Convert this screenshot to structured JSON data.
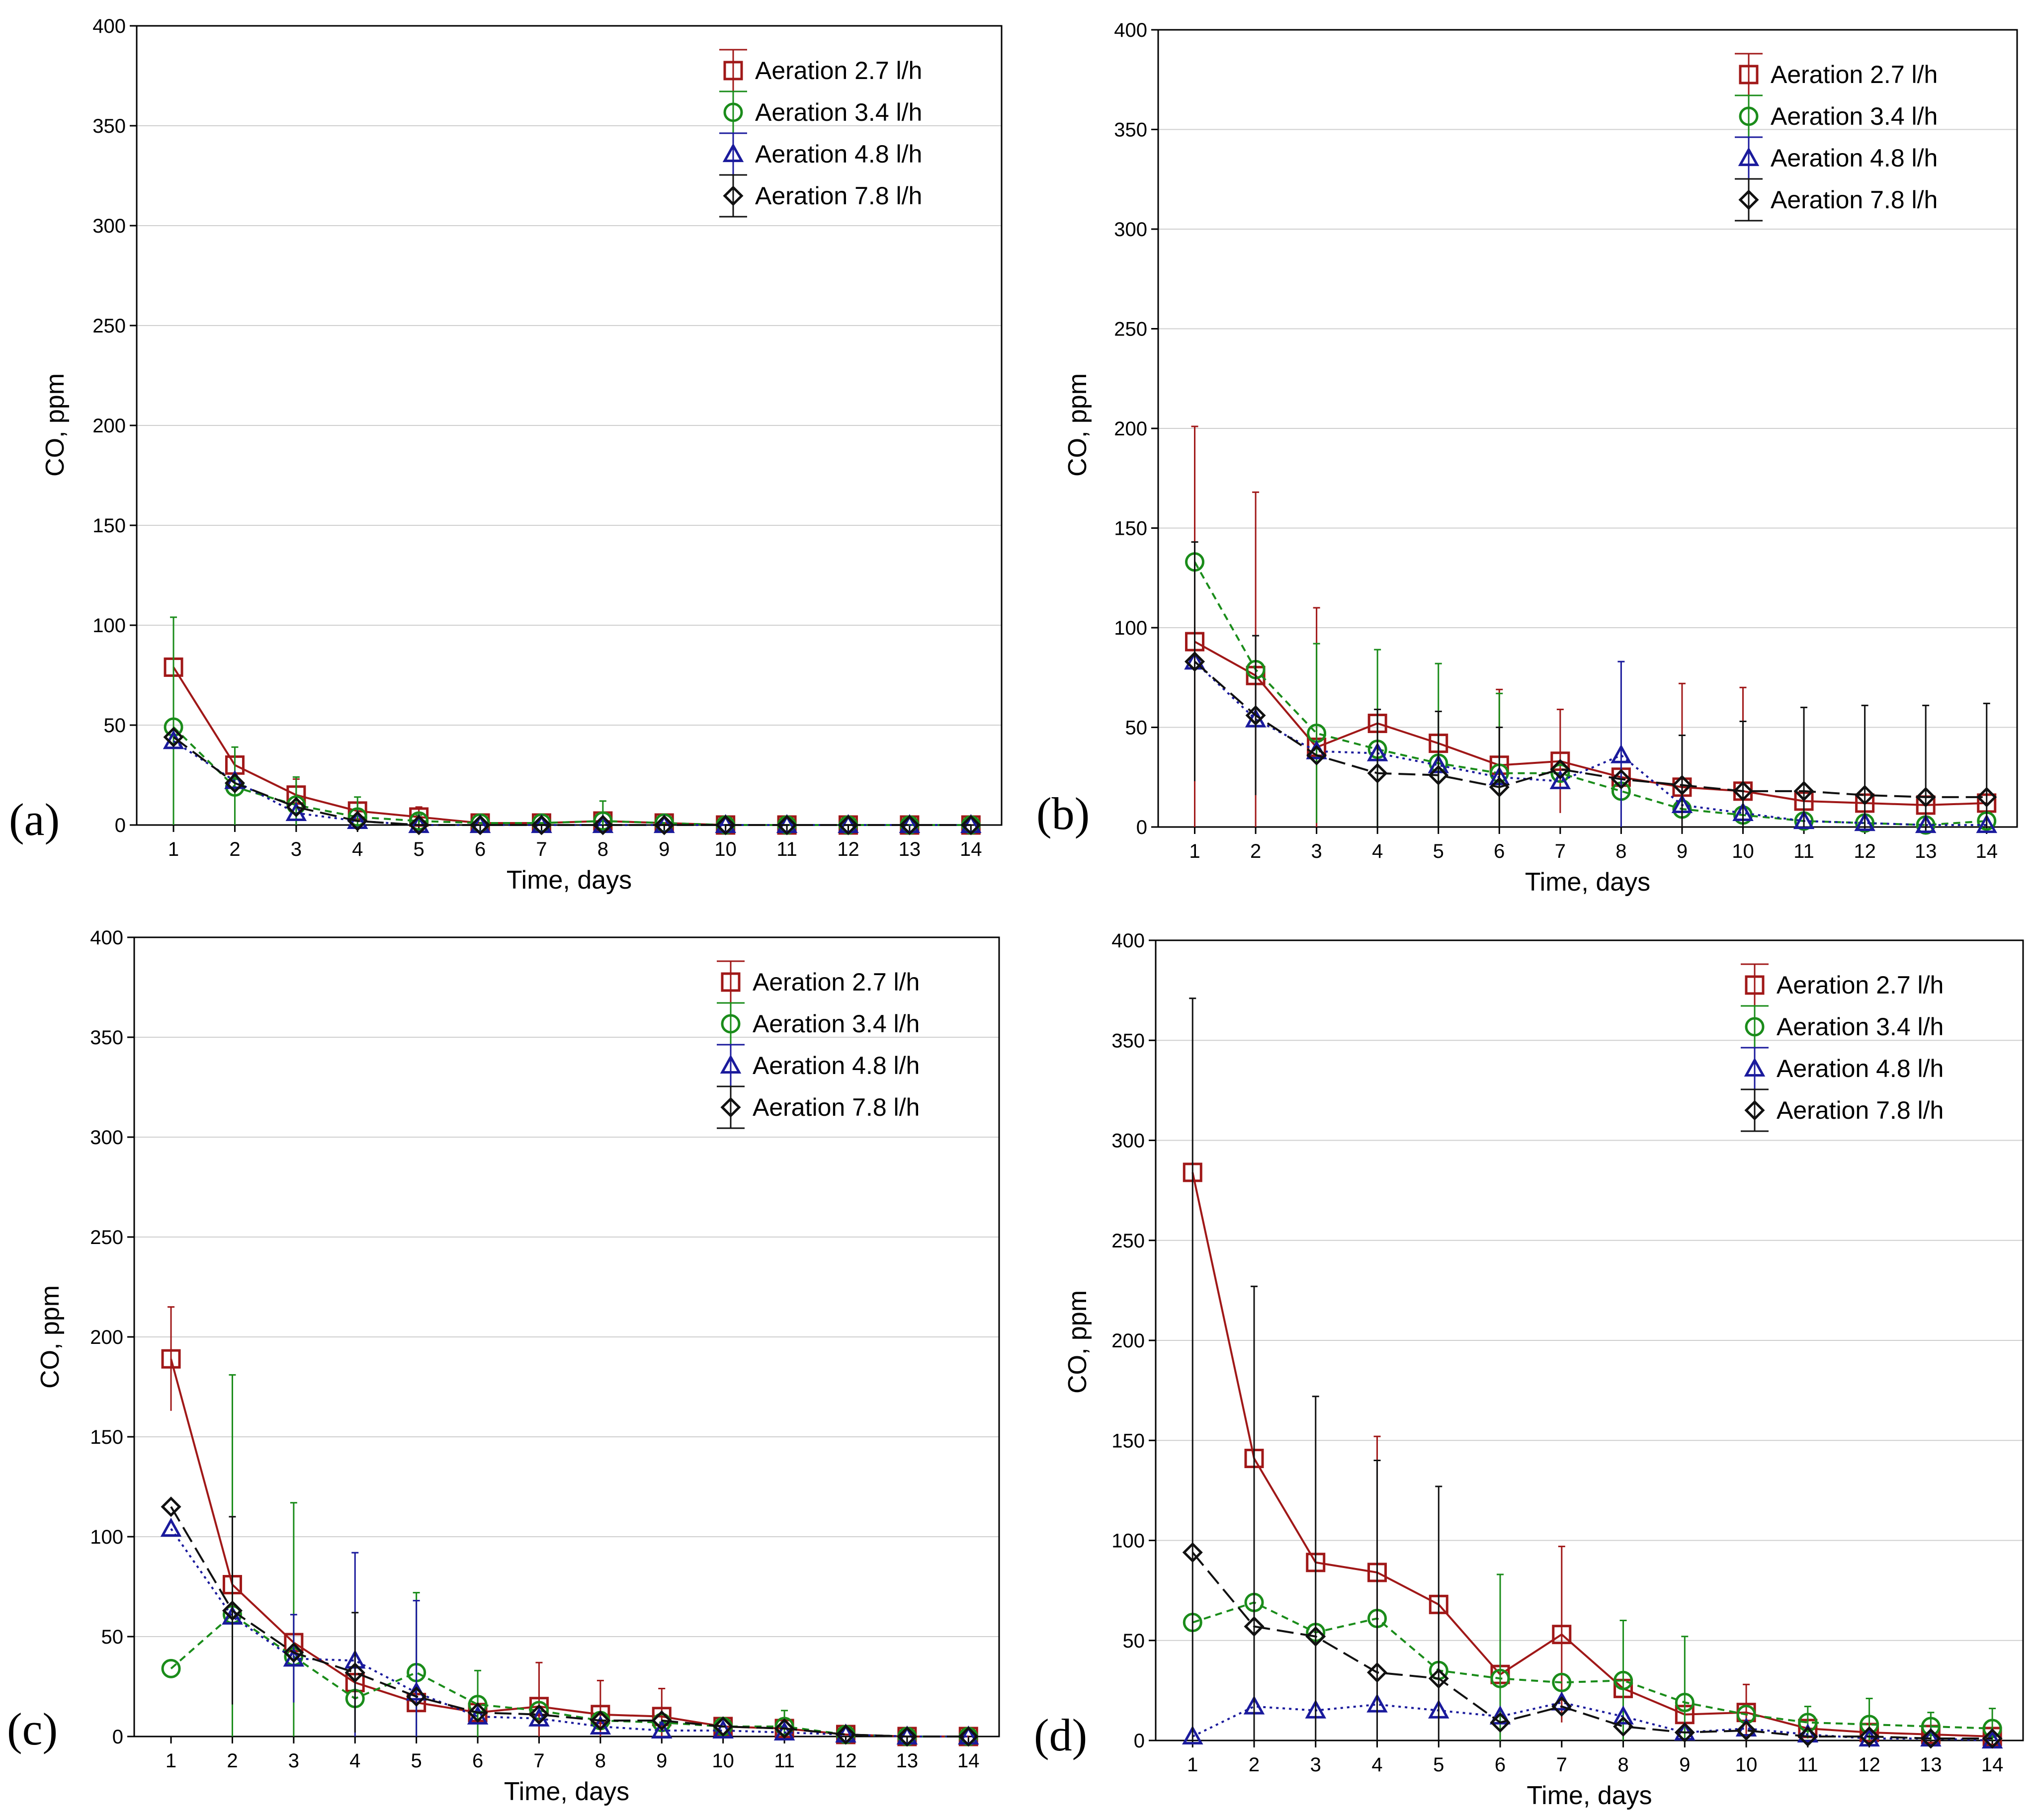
{
  "chart_data": [
    {
      "type": "line",
      "panel_label": "(a)",
      "xlabel": "Time, days",
      "ylabel": "CO, ppm",
      "ylim": [
        0,
        400
      ],
      "yticks": [
        "0",
        "50",
        "100",
        "150",
        "200",
        "250",
        "300",
        "350",
        "400"
      ],
      "categories": [
        "1",
        "2",
        "3",
        "4",
        "5",
        "6",
        "7",
        "8",
        "9",
        "10",
        "11",
        "12",
        "13",
        "14"
      ],
      "grid": "horizontal",
      "legend_position": "top-right",
      "series": [
        {
          "name": "Aeration 2.7 l/h",
          "color": "#a01818",
          "marker": "square",
          "dash": "solid",
          "values": [
            79,
            30,
            15,
            7,
            4,
            1,
            1,
            2,
            1,
            0,
            0,
            0,
            0,
            0
          ],
          "error": [
            0,
            0,
            8,
            4,
            5,
            0,
            0,
            0,
            0,
            0,
            0,
            0,
            0,
            0
          ]
        },
        {
          "name": "Aeration 3.4 l/h",
          "color": "#1a8c1a",
          "marker": "circle",
          "dash": "short",
          "values": [
            49,
            19,
            10,
            4,
            2,
            1,
            1,
            2,
            1,
            0,
            0,
            0,
            0,
            0
          ],
          "error": [
            55,
            20,
            14,
            10,
            3,
            0,
            0,
            10,
            0,
            0,
            0,
            0,
            0,
            0
          ]
        },
        {
          "name": "Aeration 4.8 l/h",
          "color": "#1a1a9c",
          "marker": "triangle",
          "dash": "dot",
          "values": [
            42,
            22,
            6,
            2,
            0,
            0,
            0,
            0,
            0,
            0,
            0,
            0,
            0,
            0
          ],
          "error": [
            0,
            0,
            0,
            0,
            0,
            0,
            0,
            0,
            0,
            0,
            0,
            0,
            0,
            0
          ]
        },
        {
          "name": "Aeration 7.8 l/h",
          "color": "#111111",
          "marker": "diamond",
          "dash": "long",
          "values": [
            44,
            21,
            9,
            2,
            0,
            0,
            0,
            0,
            0,
            0,
            0,
            0,
            0,
            0
          ],
          "error": [
            0,
            0,
            0,
            0,
            0,
            0,
            0,
            0,
            0,
            0,
            0,
            0,
            0,
            0
          ]
        }
      ]
    },
    {
      "type": "line",
      "panel_label": "(b)",
      "xlabel": "Time, days",
      "ylabel": "CO, ppm",
      "ylim": [
        0,
        400
      ],
      "yticks": [
        "0",
        "50",
        "100",
        "150",
        "200",
        "250",
        "300",
        "350",
        "400"
      ],
      "categories": [
        "1",
        "2",
        "3",
        "4",
        "5",
        "6",
        "7",
        "8",
        "9",
        "10",
        "11",
        "12",
        "13",
        "14"
      ],
      "grid": "horizontal",
      "legend_position": "top-right",
      "series": [
        {
          "name": "Aeration 2.7 l/h",
          "color": "#a01818",
          "marker": "square",
          "dash": "solid",
          "values": [
            93,
            76,
            40,
            52,
            42,
            31,
            33,
            25,
            20,
            18,
            13,
            12,
            11,
            12
          ],
          "error": [
            108,
            92,
            70,
            0,
            0,
            38,
            26,
            0,
            52,
            52,
            0,
            0,
            0,
            0
          ]
        },
        {
          "name": "Aeration 3.4 l/h",
          "color": "#1a8c1a",
          "marker": "circle",
          "dash": "short",
          "values": [
            133,
            79,
            47,
            39,
            32,
            27,
            27,
            18,
            9,
            6,
            3,
            2,
            1,
            3
          ],
          "error": [
            0,
            0,
            45,
            50,
            50,
            40,
            0,
            0,
            0,
            0,
            0,
            0,
            0,
            0
          ]
        },
        {
          "name": "Aeration 4.8 l/h",
          "color": "#1a1a9c",
          "marker": "triangle",
          "dash": "dot",
          "values": [
            83,
            54,
            38,
            37,
            31,
            25,
            23,
            36,
            11,
            7,
            3,
            2,
            1,
            1
          ],
          "error": [
            0,
            0,
            0,
            0,
            0,
            0,
            0,
            47,
            0,
            0,
            0,
            0,
            0,
            0
          ]
        },
        {
          "name": "Aeration 7.8 l/h",
          "color": "#111111",
          "marker": "diamond",
          "dash": "long",
          "values": [
            83,
            56,
            36,
            27,
            26,
            20,
            29,
            24,
            21,
            18,
            18,
            16,
            15,
            15
          ],
          "error": [
            60,
            40,
            0,
            32,
            32,
            30,
            0,
            0,
            25,
            35,
            42,
            45,
            46,
            47
          ]
        }
      ]
    },
    {
      "type": "line",
      "panel_label": "(c)",
      "xlabel": "Time, days",
      "ylabel": "CO, ppm",
      "ylim": [
        0,
        400
      ],
      "yticks": [
        "0",
        "50",
        "100",
        "150",
        "200",
        "250",
        "300",
        "350",
        "400"
      ],
      "categories": [
        "1",
        "2",
        "3",
        "4",
        "5",
        "6",
        "7",
        "8",
        "9",
        "10",
        "11",
        "12",
        "13",
        "14"
      ],
      "grid": "horizontal",
      "legend_position": "top-right",
      "series": [
        {
          "name": "Aeration 2.7 l/h",
          "color": "#a01818",
          "marker": "square",
          "dash": "solid",
          "values": [
            189,
            76,
            47,
            27,
            17,
            12,
            15,
            11,
            10,
            5,
            4,
            1,
            0,
            0
          ],
          "error": [
            26,
            0,
            0,
            0,
            0,
            0,
            22,
            17,
            14,
            0,
            0,
            0,
            0,
            0
          ]
        },
        {
          "name": "Aeration 3.4 l/h",
          "color": "#1a8c1a",
          "marker": "circle",
          "dash": "short",
          "values": [
            34,
            61,
            40,
            19,
            32,
            16,
            13,
            8,
            7,
            5,
            5,
            1,
            0,
            0
          ],
          "error": [
            0,
            120,
            77,
            0,
            40,
            17,
            0,
            0,
            0,
            0,
            8,
            0,
            0,
            0
          ]
        },
        {
          "name": "Aeration 4.8 l/h",
          "color": "#1a1a9c",
          "marker": "triangle",
          "dash": "dot",
          "values": [
            104,
            60,
            39,
            38,
            22,
            10,
            9,
            5,
            3,
            3,
            2,
            1,
            0,
            0
          ],
          "error": [
            0,
            0,
            22,
            54,
            46,
            0,
            0,
            0,
            0,
            0,
            0,
            0,
            0,
            0
          ]
        },
        {
          "name": "Aeration 7.8 l/h",
          "color": "#111111",
          "marker": "diamond",
          "dash": "long",
          "values": [
            115,
            63,
            42,
            32,
            20,
            12,
            11,
            8,
            8,
            5,
            4,
            1,
            0,
            0
          ],
          "error": [
            0,
            47,
            0,
            30,
            0,
            0,
            0,
            0,
            0,
            0,
            0,
            0,
            0,
            0
          ]
        }
      ]
    },
    {
      "type": "line",
      "panel_label": "(d)",
      "xlabel": "Time, days",
      "ylabel": "CO, ppm",
      "ylim": [
        0,
        400
      ],
      "yticks": [
        "0",
        "50",
        "100",
        "150",
        "200",
        "250",
        "300",
        "350",
        "400"
      ],
      "categories": [
        "1",
        "2",
        "3",
        "4",
        "5",
        "6",
        "7",
        "8",
        "9",
        "10",
        "11",
        "12",
        "13",
        "14"
      ],
      "grid": "horizontal",
      "legend_position": "top-right",
      "series": [
        {
          "name": "Aeration 2.7 l/h",
          "color": "#a01818",
          "marker": "square",
          "dash": "solid",
          "values": [
            284,
            141,
            89,
            84,
            68,
            33,
            53,
            26,
            13,
            14,
            6,
            4,
            3,
            2
          ],
          "error": [
            0,
            0,
            0,
            68,
            0,
            0,
            44,
            0,
            0,
            14,
            0,
            0,
            0,
            0
          ]
        },
        {
          "name": "Aeration 3.4 l/h",
          "color": "#1a8c1a",
          "marker": "circle",
          "dash": "short",
          "values": [
            59,
            69,
            54,
            61,
            35,
            31,
            29,
            30,
            19,
            13,
            9,
            8,
            7,
            6
          ],
          "error": [
            0,
            0,
            0,
            0,
            0,
            52,
            0,
            30,
            33,
            0,
            8,
            13,
            7,
            10
          ]
        },
        {
          "name": "Aeration 4.8 l/h",
          "color": "#1a1a9c",
          "marker": "triangle",
          "dash": "dot",
          "values": [
            2,
            17,
            15,
            18,
            15,
            12,
            19,
            12,
            4,
            6,
            3,
            1,
            1,
            0
          ],
          "error": [
            0,
            0,
            0,
            0,
            0,
            0,
            0,
            0,
            0,
            0,
            0,
            0,
            0,
            0
          ]
        },
        {
          "name": "Aeration 7.8 l/h",
          "color": "#111111",
          "marker": "diamond",
          "dash": "long",
          "values": [
            94,
            57,
            52,
            34,
            31,
            9,
            17,
            7,
            4,
            5,
            2,
            2,
            1,
            1
          ],
          "error": [
            277,
            170,
            120,
            106,
            96,
            0,
            0,
            0,
            0,
            0,
            0,
            0,
            0,
            0
          ]
        }
      ]
    }
  ]
}
